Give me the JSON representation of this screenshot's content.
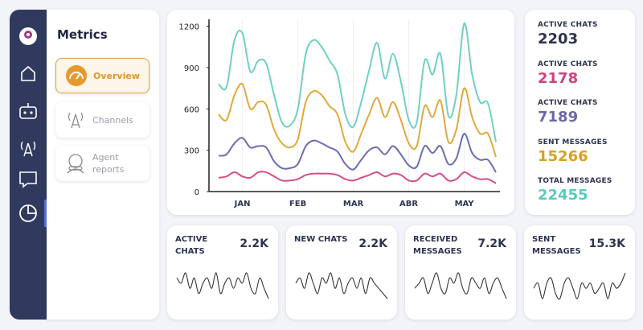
{
  "sidebar": {
    "title": "Metrics",
    "nav": [
      "Overview",
      "Channels",
      "Agent reports"
    ]
  },
  "chart_data": {
    "type": "line",
    "categories": [
      null,
      null,
      null,
      "JAN",
      null,
      null,
      null,
      null,
      null,
      null,
      "FEB",
      null,
      null,
      null,
      null,
      null,
      null,
      "MAR",
      null,
      null,
      null,
      null,
      null,
      null,
      "ABR",
      null,
      null,
      null,
      null,
      null,
      null,
      "MAY",
      null,
      null,
      null,
      null
    ],
    "ylim": [
      0,
      1250
    ],
    "yticks": [
      0,
      300,
      600,
      900,
      1200
    ],
    "series": [
      {
        "color": "#6fd0c6",
        "values": [
          780,
          760,
          1100,
          1150,
          870,
          950,
          930,
          700,
          500,
          480,
          600,
          1000,
          1100,
          1050,
          950,
          850,
          560,
          470,
          650,
          880,
          1080,
          820,
          1000,
          800,
          520,
          500,
          950,
          850,
          1000,
          550,
          700,
          1220,
          850,
          650,
          640,
          360
        ]
      },
      {
        "color": "#e2a93b",
        "values": [
          560,
          520,
          700,
          780,
          600,
          650,
          630,
          450,
          350,
          320,
          380,
          650,
          730,
          700,
          620,
          560,
          360,
          290,
          420,
          560,
          680,
          540,
          650,
          520,
          350,
          330,
          620,
          540,
          660,
          360,
          450,
          750,
          540,
          420,
          420,
          250
        ]
      },
      {
        "color": "#6b6cb3",
        "values": [
          260,
          270,
          350,
          390,
          320,
          330,
          320,
          220,
          170,
          170,
          200,
          330,
          370,
          350,
          320,
          290,
          200,
          160,
          230,
          300,
          320,
          270,
          330,
          270,
          190,
          180,
          330,
          280,
          330,
          200,
          240,
          420,
          280,
          230,
          230,
          140
        ]
      },
      {
        "color": "#d34f86",
        "values": [
          100,
          110,
          140,
          110,
          100,
          140,
          140,
          110,
          80,
          80,
          90,
          120,
          130,
          130,
          130,
          120,
          90,
          80,
          100,
          120,
          140,
          110,
          130,
          120,
          80,
          80,
          130,
          110,
          130,
          80,
          90,
          140,
          110,
          90,
          90,
          60
        ]
      }
    ]
  },
  "stats": [
    {
      "label": "ACTIVE CHATS",
      "value": 2203,
      "color": "#2e3450"
    },
    {
      "label": "ACTIVE CHATS",
      "value": 2178,
      "color": "#d0437f"
    },
    {
      "label": "ACTIVE CHATS",
      "value": 7189,
      "color": "#6a6aa8"
    },
    {
      "label": "SENT MESSAGES",
      "value": 15266,
      "color": "#d9a020"
    },
    {
      "label": "TOTAL MESSAGES",
      "value": 22455,
      "color": "#5cc9c0"
    }
  ],
  "cards": [
    {
      "label": "ACTIVE CHATS",
      "value": "2.2K",
      "sparkline": [
        6,
        5,
        7,
        4,
        6,
        3,
        5,
        6,
        4,
        7,
        3,
        5,
        6,
        4,
        6,
        5,
        7,
        4,
        3,
        6,
        4,
        2
      ]
    },
    {
      "label": "NEW CHATS",
      "value": "2.2K",
      "sparkline": [
        5,
        6,
        4,
        7,
        5,
        3,
        6,
        5,
        7,
        4,
        6,
        3,
        5,
        6,
        4,
        6,
        3,
        6,
        5,
        4,
        3,
        2
      ]
    },
    {
      "label": "RECEIVED MESSAGES",
      "value": "7.2K",
      "sparkline": [
        4,
        5,
        6,
        3,
        5,
        7,
        4,
        3,
        6,
        5,
        7,
        4,
        3,
        6,
        5,
        4,
        6,
        3,
        5,
        6,
        4,
        2
      ]
    },
    {
      "label": "SENT MESSAGES",
      "value": "15.3K",
      "sparkline": [
        5,
        6,
        3,
        6,
        7,
        4,
        3,
        6,
        7,
        5,
        3,
        6,
        5,
        6,
        4,
        5,
        6,
        3,
        6,
        5,
        6,
        8
      ]
    }
  ]
}
